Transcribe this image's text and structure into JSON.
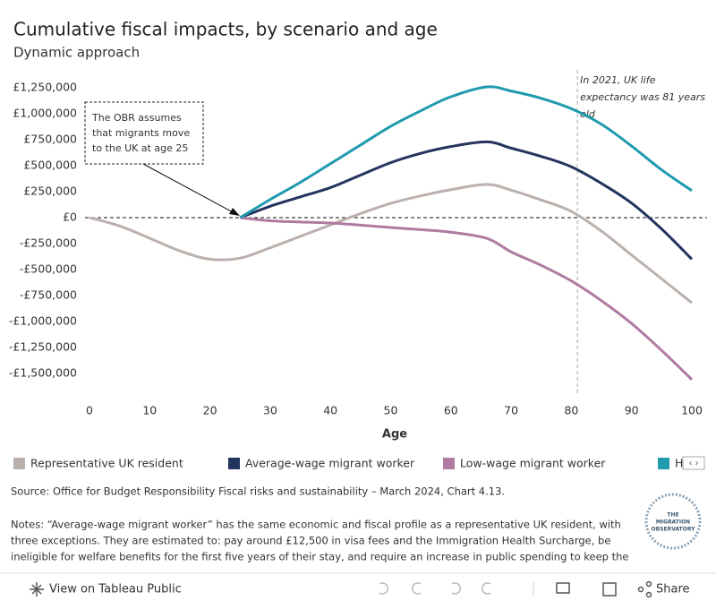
{
  "chart_data": {
    "type": "line",
    "title": "Cumulative fiscal impacts, by scenario and age",
    "subtitle": "Dynamic approach",
    "x_label": "Age",
    "x": [
      0,
      5,
      10,
      15,
      20,
      25,
      30,
      35,
      40,
      45,
      50,
      55,
      60,
      66,
      70,
      75,
      80,
      85,
      90,
      95,
      100
    ],
    "xlim": [
      0,
      100
    ],
    "xticks": [
      0,
      10,
      20,
      30,
      40,
      50,
      60,
      70,
      80,
      90,
      100
    ],
    "ylim": [
      -1700000,
      1450000
    ],
    "yticks": [
      {
        "value": 1250000,
        "label": "£1,250,000"
      },
      {
        "value": 1000000,
        "label": "£1,000,000"
      },
      {
        "value": 750000,
        "label": "£750,000"
      },
      {
        "value": 500000,
        "label": "£500,000"
      },
      {
        "value": 250000,
        "label": "£250,000"
      },
      {
        "value": 0,
        "label": "£0"
      },
      {
        "value": -250000,
        "label": "-£250,000"
      },
      {
        "value": -500000,
        "label": "-£500,000"
      },
      {
        "value": -750000,
        "label": "-£750,000"
      },
      {
        "value": -1000000,
        "label": "-£1,000,000"
      },
      {
        "value": -1250000,
        "label": "-£1,250,000"
      },
      {
        "value": -1500000,
        "label": "-£1,500,000"
      }
    ],
    "series": [
      {
        "name": "Representative UK resident",
        "color": "#bab0ac",
        "values": [
          0,
          -80000,
          -198000,
          -320000,
          -400000,
          -390000,
          -290000,
          -180000,
          -70000,
          40000,
          138000,
          210000,
          270000,
          320000,
          265000,
          170000,
          60000,
          -130000,
          -360000,
          -590000,
          -820000
        ]
      },
      {
        "name": "Average-wage migrant worker",
        "color": "#23345e",
        "values": [
          null,
          null,
          null,
          null,
          null,
          0,
          110000,
          200000,
          290000,
          410000,
          530000,
          620000,
          685000,
          730000,
          670000,
          590000,
          490000,
          330000,
          140000,
          -110000,
          -400000
        ]
      },
      {
        "name": "Low-wage migrant worker",
        "color": "#b07aa1",
        "values": [
          null,
          null,
          null,
          null,
          null,
          0,
          -30000,
          -42000,
          -52000,
          -72000,
          -95000,
          -115000,
          -140000,
          -200000,
          -330000,
          -460000,
          -610000,
          -800000,
          -1020000,
          -1280000,
          -1560000
        ]
      },
      {
        "name": "H",
        "color": "#1f9aae",
        "values": [
          null,
          null,
          null,
          null,
          null,
          0,
          175000,
          340000,
          520000,
          700000,
          880000,
          1030000,
          1165000,
          1260000,
          1220000,
          1150000,
          1050000,
          900000,
          690000,
          460000,
          260000
        ]
      }
    ],
    "reference_line": {
      "x": 81,
      "text": [
        "In 2021, UK life",
        "expectancy was 81 years",
        "old"
      ]
    },
    "callout": {
      "x": 25,
      "text": [
        "The OBR assumes",
        "that migrants move",
        "to the UK at age 25"
      ]
    }
  },
  "source": "Source: Office for Budget Responsibility Fiscal risks and sustainability – March 2024, Chart 4.13.",
  "notes": [
    "Notes: “Average-wage migrant worker” has the same economic and fiscal profile as a representative UK resident, with",
    "three exceptions. They are estimated to: pay around £12,500 in visa fees and the Immigration Health Surcharge, be",
    "ineligible for welfare benefits for the first five years of their stay, and require an increase in public spending to keep the"
  ],
  "logo": [
    "THE",
    "MIGRATION",
    "OBSERVATORY"
  ],
  "toolbar": {
    "view": "View on Tableau Public",
    "share": "Share"
  }
}
